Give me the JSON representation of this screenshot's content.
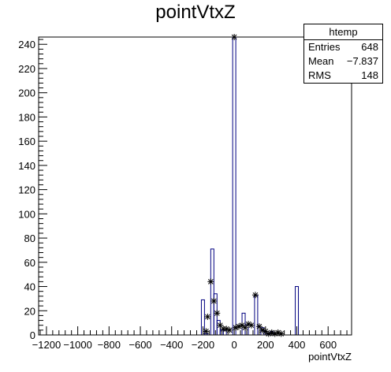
{
  "chart_data": {
    "type": "bar",
    "title": "pointVtxZ",
    "xlabel": "pointVtxZ",
    "ylabel": "",
    "xlim": [
      -1250,
      750
    ],
    "ylim": [
      0,
      246
    ],
    "bin_width": 20,
    "x_ticks": [
      "-1200",
      "-1000",
      "-800",
      "-600",
      "-400",
      "-200",
      "0",
      "200",
      "400",
      "600"
    ],
    "y_ticks": [
      "0",
      "20",
      "40",
      "60",
      "80",
      "100",
      "120",
      "140",
      "160",
      "180",
      "200",
      "220",
      "240"
    ],
    "series": [
      {
        "bins": [
          {
            "x": -200,
            "value": 29
          },
          {
            "x": -180,
            "value": 1
          },
          {
            "x": -140,
            "value": 71
          },
          {
            "x": -120,
            "value": 34
          },
          {
            "x": -100,
            "value": 12
          },
          {
            "x": -80,
            "value": 4
          },
          {
            "x": -60,
            "value": 4
          },
          {
            "x": 0,
            "value": 246
          },
          {
            "x": 60,
            "value": 18
          },
          {
            "x": 80,
            "value": 8
          },
          {
            "x": 140,
            "value": 33
          },
          {
            "x": 180,
            "value": 6
          },
          {
            "x": 200,
            "value": 2
          },
          {
            "x": 240,
            "value": 3
          },
          {
            "x": 400,
            "value": 40
          }
        ]
      },
      {
        "points": [
          {
            "x": -180,
            "y": 3
          },
          {
            "x": -170,
            "y": 15
          },
          {
            "x": -150,
            "y": 44
          },
          {
            "x": -130,
            "y": 28
          },
          {
            "x": -110,
            "y": 18
          },
          {
            "x": -90,
            "y": 8
          },
          {
            "x": -70,
            "y": 5
          },
          {
            "x": -50,
            "y": 5
          },
          {
            "x": -30,
            "y": 4
          },
          {
            "x": 0,
            "y": 246
          },
          {
            "x": 10,
            "y": 6
          },
          {
            "x": 30,
            "y": 7
          },
          {
            "x": 50,
            "y": 8
          },
          {
            "x": 70,
            "y": 6
          },
          {
            "x": 90,
            "y": 9
          },
          {
            "x": 110,
            "y": 8
          },
          {
            "x": 135,
            "y": 33
          },
          {
            "x": 160,
            "y": 7
          },
          {
            "x": 180,
            "y": 4
          },
          {
            "x": 200,
            "y": 3
          },
          {
            "x": 220,
            "y": 1
          },
          {
            "x": 240,
            "y": 2
          },
          {
            "x": 260,
            "y": 1
          },
          {
            "x": 280,
            "y": 2
          },
          {
            "x": 300,
            "y": 1
          }
        ]
      }
    ],
    "stats": {
      "name": "htemp",
      "rows": [
        {
          "label": "Entries",
          "value": "648"
        },
        {
          "label": "Mean",
          "value": "−7.837"
        },
        {
          "label": "RMS",
          "value": "148"
        }
      ]
    }
  }
}
